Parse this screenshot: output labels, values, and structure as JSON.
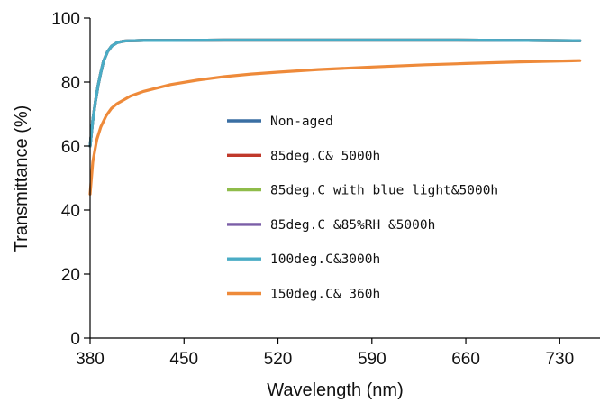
{
  "chart_data": {
    "type": "line",
    "title": "",
    "xlabel": "Wavelength (nm)",
    "ylabel": "Transmittance (%)",
    "xlim": [
      380,
      760
    ],
    "ylim": [
      0,
      100
    ],
    "xticks": [
      380,
      450,
      520,
      590,
      660,
      730
    ],
    "yticks": [
      0,
      20,
      40,
      60,
      80,
      100
    ],
    "grid": false,
    "legend_position": "center",
    "series": [
      {
        "name": "Non-aged",
        "color": "#3a6fa3",
        "x": [
          380,
          382,
          384,
          386,
          388,
          390,
          393,
          396,
          400,
          405,
          410,
          420,
          440,
          480,
          550,
          650,
          745
        ],
        "y": [
          60,
          68,
          74,
          79,
          83,
          86.5,
          89.5,
          91.2,
          92.3,
          92.8,
          92.9,
          93.0,
          93.0,
          93.1,
          93.1,
          93.1,
          92.9
        ]
      },
      {
        "name": "85deg.C& 5000h",
        "color": "#c0392b",
        "x": [
          380,
          382,
          384,
          386,
          388,
          390,
          393,
          396,
          400,
          405,
          410,
          420,
          440,
          480,
          550,
          650,
          745
        ],
        "y": [
          60,
          68,
          74,
          79,
          83,
          86.5,
          89.5,
          91.2,
          92.3,
          92.8,
          92.9,
          93.0,
          93.0,
          93.1,
          93.1,
          93.1,
          92.9
        ]
      },
      {
        "name": "85deg.C with blue light&5000h",
        "color": "#8fbc4a",
        "x": [
          380,
          382,
          384,
          386,
          388,
          390,
          393,
          396,
          400,
          405,
          410,
          420,
          440,
          480,
          550,
          650,
          745
        ],
        "y": [
          60,
          68,
          74,
          79,
          83,
          86.5,
          89.5,
          91.2,
          92.3,
          92.8,
          92.9,
          93.0,
          93.0,
          93.1,
          93.1,
          93.1,
          92.9
        ]
      },
      {
        "name": "85deg.C &85%RH &5000h",
        "color": "#7b5ea7",
        "x": [
          380,
          382,
          384,
          386,
          388,
          390,
          393,
          396,
          400,
          405,
          410,
          420,
          440,
          480,
          550,
          650,
          745
        ],
        "y": [
          60,
          68,
          74,
          79,
          83,
          86.5,
          89.5,
          91.2,
          92.3,
          92.8,
          92.9,
          93.0,
          93.0,
          93.1,
          93.1,
          93.1,
          92.9
        ]
      },
      {
        "name": "100deg.C&3000h",
        "color": "#4aacc5",
        "x": [
          380,
          382,
          384,
          386,
          388,
          390,
          393,
          396,
          400,
          405,
          410,
          420,
          440,
          480,
          550,
          650,
          745
        ],
        "y": [
          60,
          68,
          74,
          79,
          83,
          86.5,
          89.5,
          91.2,
          92.3,
          92.8,
          92.9,
          93.0,
          93.0,
          93.1,
          93.1,
          93.1,
          92.9
        ]
      },
      {
        "name": "150deg.C& 360h",
        "color": "#ee8a3a",
        "x": [
          380,
          382,
          385,
          388,
          392,
          396,
          400,
          410,
          420,
          440,
          460,
          480,
          500,
          520,
          550,
          590,
          630,
          660,
          700,
          745
        ],
        "y": [
          45,
          55,
          62,
          66,
          69.5,
          71.8,
          73.2,
          75.6,
          77.1,
          79.2,
          80.6,
          81.7,
          82.5,
          83.1,
          83.9,
          84.7,
          85.4,
          85.8,
          86.3,
          86.7
        ]
      }
    ]
  }
}
